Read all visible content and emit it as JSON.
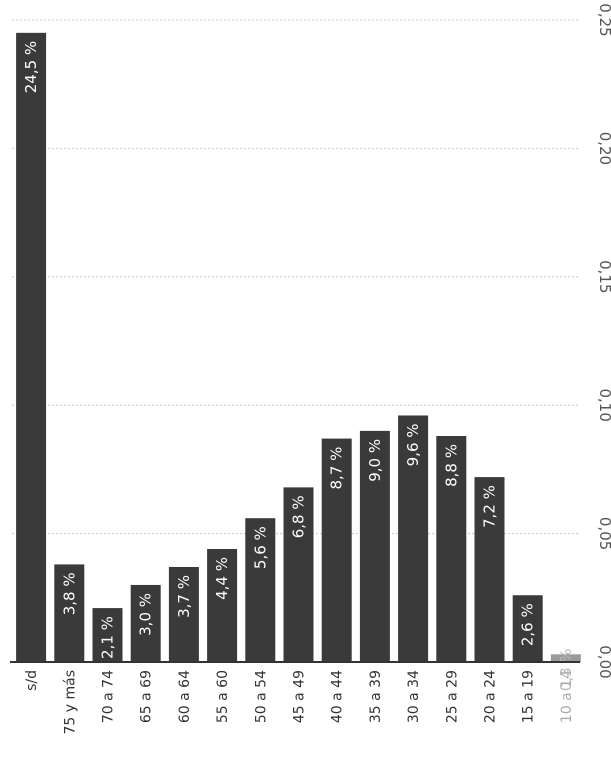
{
  "chart_data": {
    "type": "bar",
    "orientation": "vertical-rotated",
    "categories": [
      "s/d",
      "75 y más",
      "70 a 74",
      "65 a 69",
      "60 a 64",
      "55 a 60",
      "50 a 54",
      "45 a 49",
      "40 a 44",
      "35 a 39",
      "30 a 34",
      "25 a 29",
      "20 a 24",
      "15 a 19",
      "10 a 14"
    ],
    "values": [
      0.245,
      0.038,
      0.021,
      0.03,
      0.037,
      0.044,
      0.056,
      0.068,
      0.087,
      0.09,
      0.096,
      0.088,
      0.072,
      0.026,
      0.003
    ],
    "data_labels": [
      "24,5 %",
      "3,8 %",
      "2,1 %",
      "3,0 %",
      "3,7 %",
      "4,4 %",
      "5,6 %",
      "6,8 %",
      "8,7 %",
      "9,0 %",
      "9,6 %",
      "8,8 %",
      "7,2 %",
      "2,6 %",
      "0,3 %"
    ],
    "ylim": [
      0,
      0.25
    ],
    "yticks": [
      "0,00",
      "0,05",
      "0,10",
      "0,15",
      "0,20",
      "0,25"
    ],
    "grid": true,
    "colors": {
      "bar": "#3a3a3a",
      "bar_faded": "#9a9a9a",
      "grid": "#c8c8c8",
      "axis": "#333333"
    }
  }
}
